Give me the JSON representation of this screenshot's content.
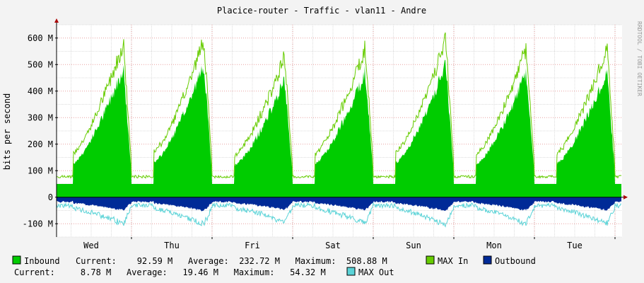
{
  "chart_data": {
    "type": "area",
    "title": "Placice-router - Traffic - vlan11 - Andre",
    "ylabel": "bits per second",
    "side_label": "RRDTOOL / TOBI OETIKER",
    "ylim": [
      -150,
      650
    ],
    "y_unit": "M",
    "y_ticks": [
      {
        "value": 600,
        "label": "600 M"
      },
      {
        "value": 500,
        "label": "500 M"
      },
      {
        "value": 400,
        "label": "400 M"
      },
      {
        "value": 300,
        "label": "300 M"
      },
      {
        "value": 200,
        "label": "200 M"
      },
      {
        "value": 100,
        "label": "100 M"
      },
      {
        "value": 0,
        "label": "0"
      },
      {
        "value": -100,
        "label": "-100 M"
      }
    ],
    "categories": [
      "Wed",
      "Thu",
      "Fri",
      "Sat",
      "Sun",
      "Mon",
      "Tue"
    ],
    "grid": true,
    "colors": {
      "inbound": "#00cc00",
      "max_in": "#66cc00",
      "outbound": "#002a97",
      "max_out": "#5ad3d7",
      "grid_minor": "#dcdcdc",
      "grid_major": "#e8a0a0",
      "axis": "#000000",
      "arrow": "#aa0000"
    },
    "series": [
      {
        "name": "Inbound",
        "kind": "area",
        "days": [
          {
            "day": "Tue",
            "peak": 130
          },
          {
            "day": "Wed",
            "peak": 490
          },
          {
            "day": "Thu",
            "peak": 500
          },
          {
            "day": "Fri",
            "peak": 440
          },
          {
            "day": "Sat",
            "peak": 475
          },
          {
            "day": "Sun",
            "peak": 500
          },
          {
            "day": "Mon",
            "peak": 470
          },
          {
            "day": "Tue",
            "peak": 480
          }
        ],
        "trough": 50
      },
      {
        "name": "MAX In",
        "kind": "line",
        "ratio": 1.15
      },
      {
        "name": "Outbound",
        "kind": "area",
        "mirror_ratio": 0.075
      },
      {
        "name": "MAX Out",
        "kind": "line",
        "mirror_ratio": 0.16
      }
    ]
  },
  "legend": {
    "row1": [
      {
        "key": "inbound",
        "name": "Inbound",
        "stats": "Current:    92.59 M   Average:  232.72 M   Maximum:  508.88 M"
      },
      {
        "key": "max_in",
        "name": "MAX In"
      },
      {
        "key": "outbound",
        "name": "Outbound"
      }
    ],
    "row2": {
      "stats": "Current:     8.78 M   Average:   19.46 M   Maximum:   54.32 M",
      "item": {
        "key": "max_out",
        "name": "MAX Out"
      }
    }
  }
}
